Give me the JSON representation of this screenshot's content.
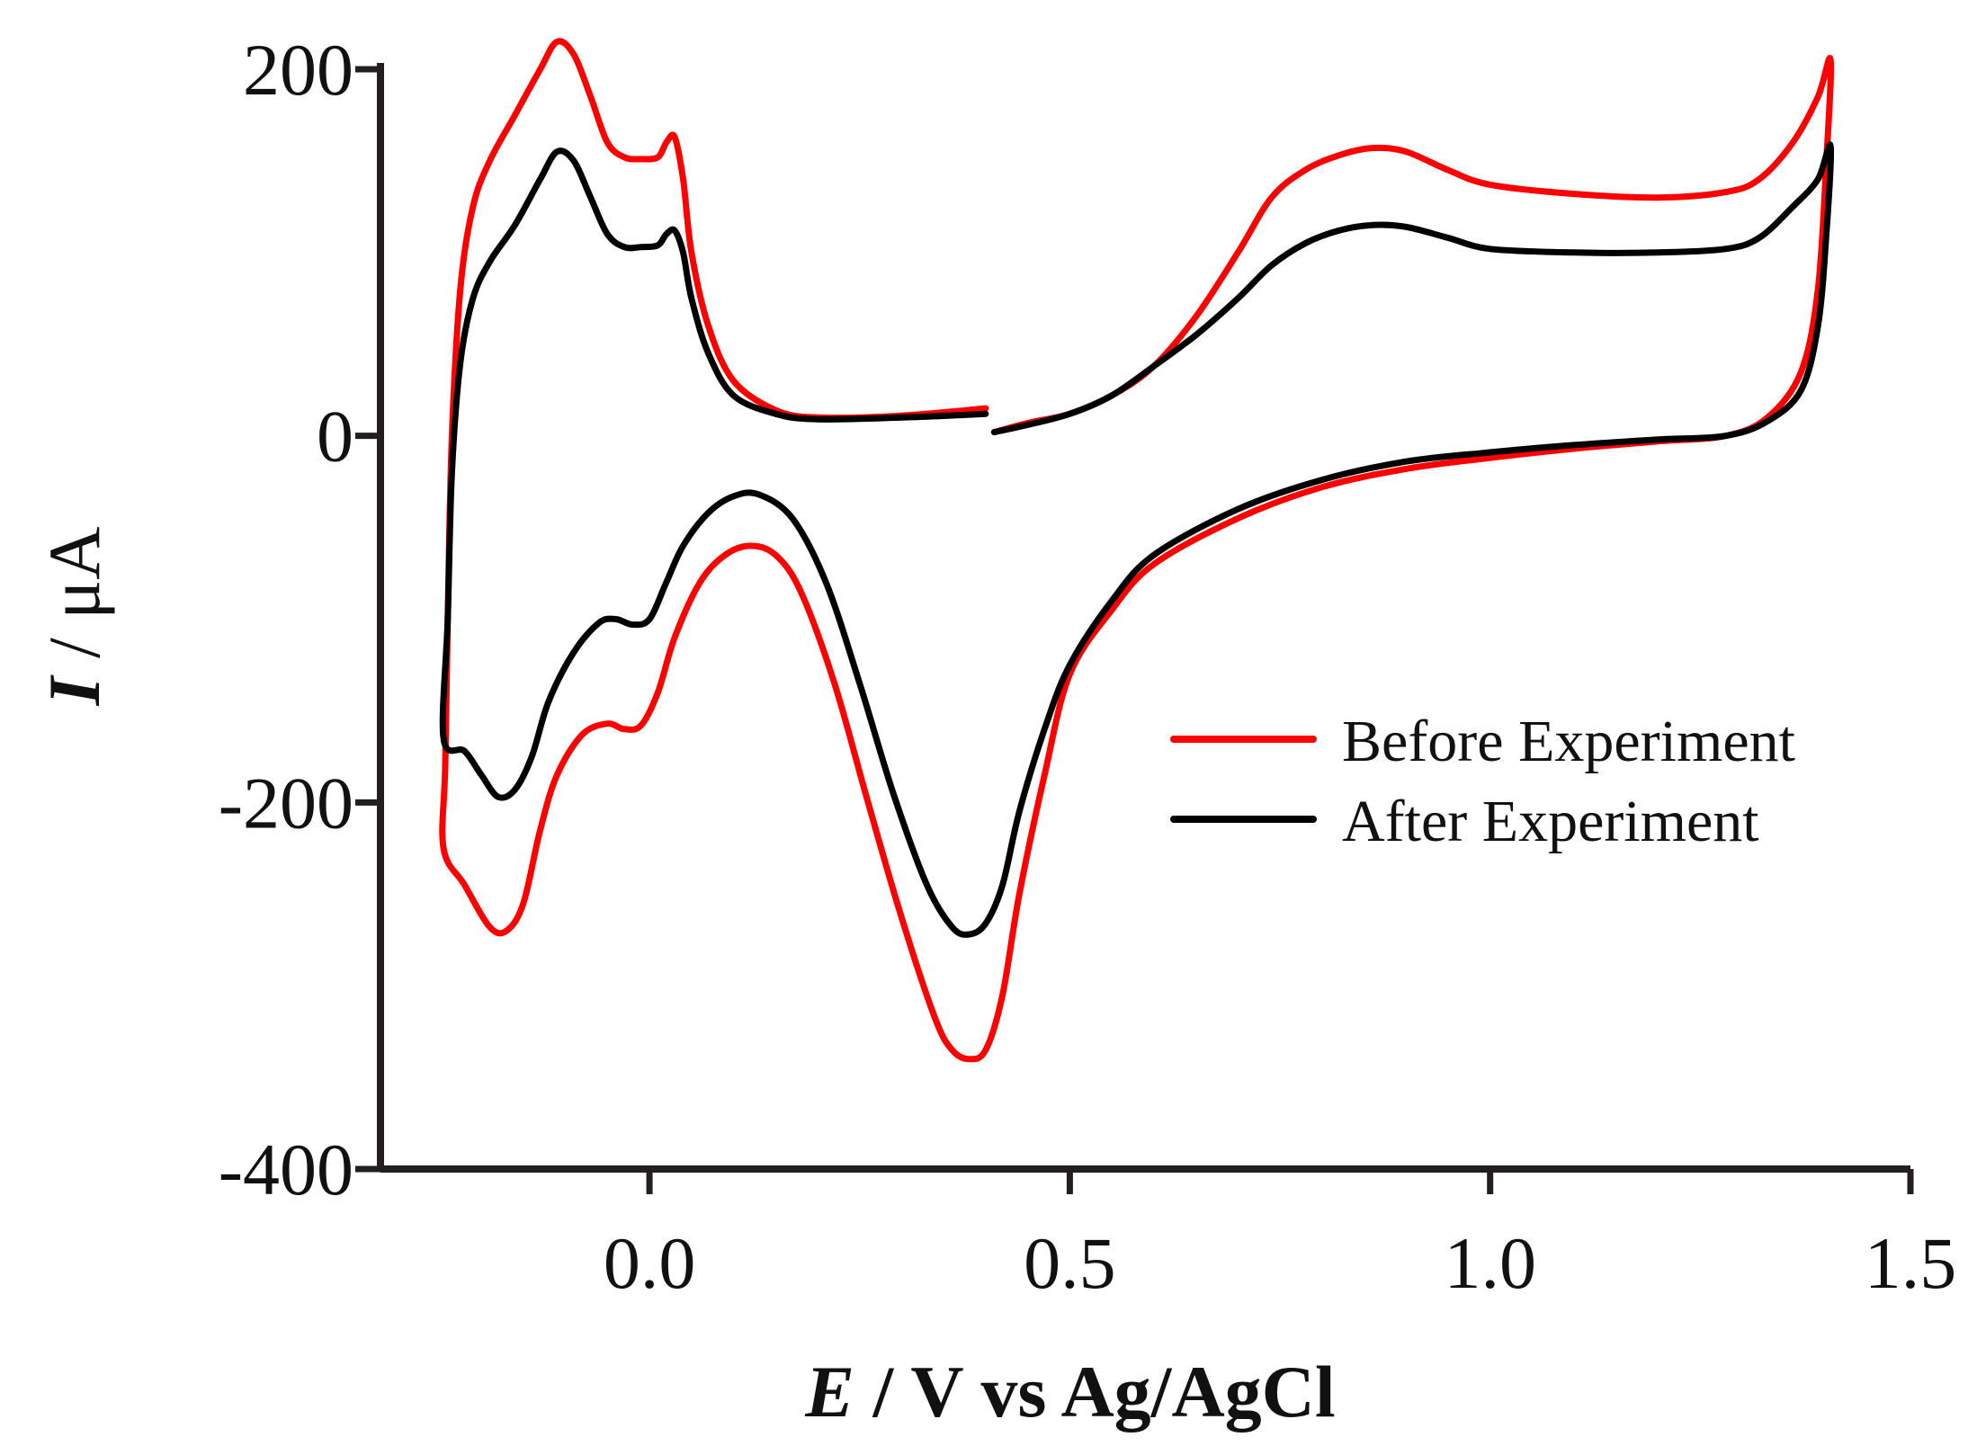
{
  "chart_data": {
    "type": "line",
    "title": "",
    "xlabel_italic": "E",
    "xlabel_rest": " / V vs Ag/AgCl",
    "ylabel_italic": "I",
    "ylabel_rest": " / μA",
    "xlim": [
      -0.32,
      1.5
    ],
    "ylim": [
      -400,
      210
    ],
    "x_ticks": [
      0.0,
      0.5,
      1.0,
      1.5
    ],
    "x_tick_labels": [
      "0.0",
      "0.5",
      "1.0",
      "1.5"
    ],
    "y_ticks": [
      200,
      0,
      -200,
      -400
    ],
    "y_tick_labels": [
      "200",
      "0",
      "-200",
      "-400"
    ],
    "grid": false,
    "legend_position": "right-middle",
    "colors": {
      "axis": "#231f20",
      "before": "#ff0000",
      "after": "#000000"
    },
    "series": [
      {
        "name": "Before Experiment",
        "color": "#ff0000",
        "points": [
          [
            0.4,
            15
          ],
          [
            0.3,
            11
          ],
          [
            0.2,
            10
          ],
          [
            0.15,
            14
          ],
          [
            0.1,
            30
          ],
          [
            0.07,
            60
          ],
          [
            0.05,
            100
          ],
          [
            0.04,
            140
          ],
          [
            0.03,
            163
          ],
          [
            0.02,
            160
          ],
          [
            0.01,
            152
          ],
          [
            -0.01,
            151
          ],
          [
            -0.03,
            152
          ],
          [
            -0.05,
            160
          ],
          [
            -0.07,
            185
          ],
          [
            -0.09,
            208
          ],
          [
            -0.11,
            215
          ],
          [
            -0.13,
            200
          ],
          [
            -0.16,
            175
          ],
          [
            -0.19,
            150
          ],
          [
            -0.21,
            125
          ],
          [
            -0.225,
            80
          ],
          [
            -0.235,
            0
          ],
          [
            -0.24,
            -100
          ],
          [
            -0.243,
            -180
          ],
          [
            -0.245,
            -225
          ],
          [
            -0.22,
            -245
          ],
          [
            -0.19,
            -268
          ],
          [
            -0.17,
            -270
          ],
          [
            -0.15,
            -255
          ],
          [
            -0.13,
            -215
          ],
          [
            -0.11,
            -185
          ],
          [
            -0.08,
            -163
          ],
          [
            -0.05,
            -157
          ],
          [
            -0.03,
            -160
          ],
          [
            -0.01,
            -158
          ],
          [
            0.01,
            -140
          ],
          [
            0.03,
            -110
          ],
          [
            0.06,
            -80
          ],
          [
            0.09,
            -65
          ],
          [
            0.12,
            -60
          ],
          [
            0.15,
            -65
          ],
          [
            0.18,
            -85
          ],
          [
            0.22,
            -135
          ],
          [
            0.26,
            -200
          ],
          [
            0.3,
            -263
          ],
          [
            0.34,
            -318
          ],
          [
            0.36,
            -335
          ],
          [
            0.38,
            -340
          ],
          [
            0.4,
            -335
          ],
          [
            0.42,
            -305
          ],
          [
            0.44,
            -250
          ],
          [
            0.47,
            -185
          ],
          [
            0.5,
            -130
          ],
          [
            0.55,
            -95
          ],
          [
            0.6,
            -70
          ],
          [
            0.7,
            -45
          ],
          [
            0.8,
            -28
          ],
          [
            0.9,
            -18
          ],
          [
            1.0,
            -12
          ],
          [
            1.1,
            -7
          ],
          [
            1.2,
            -3
          ],
          [
            1.28,
            0
          ],
          [
            1.33,
            10
          ],
          [
            1.37,
            35
          ],
          [
            1.39,
            80
          ],
          [
            1.4,
            150
          ],
          [
            1.405,
            205
          ],
          [
            1.39,
            185
          ],
          [
            1.36,
            160
          ],
          [
            1.32,
            140
          ],
          [
            1.28,
            133
          ],
          [
            1.2,
            130
          ],
          [
            1.1,
            132
          ],
          [
            1.0,
            137
          ],
          [
            0.95,
            145
          ],
          [
            0.9,
            155
          ],
          [
            0.86,
            157
          ],
          [
            0.82,
            153
          ],
          [
            0.78,
            145
          ],
          [
            0.74,
            130
          ],
          [
            0.7,
            100
          ],
          [
            0.65,
            65
          ],
          [
            0.6,
            38
          ],
          [
            0.55,
            22
          ],
          [
            0.5,
            12
          ],
          [
            0.45,
            7
          ],
          [
            0.41,
            2
          ]
        ]
      },
      {
        "name": "After Experiment",
        "color": "#000000",
        "points": [
          [
            0.4,
            12
          ],
          [
            0.3,
            10
          ],
          [
            0.2,
            9
          ],
          [
            0.15,
            12
          ],
          [
            0.1,
            22
          ],
          [
            0.07,
            45
          ],
          [
            0.05,
            75
          ],
          [
            0.04,
            100
          ],
          [
            0.03,
            112
          ],
          [
            0.02,
            110
          ],
          [
            0.01,
            104
          ],
          [
            -0.01,
            103
          ],
          [
            -0.03,
            103
          ],
          [
            -0.05,
            110
          ],
          [
            -0.07,
            130
          ],
          [
            -0.09,
            150
          ],
          [
            -0.11,
            155
          ],
          [
            -0.13,
            140
          ],
          [
            -0.16,
            115
          ],
          [
            -0.19,
            95
          ],
          [
            -0.21,
            75
          ],
          [
            -0.225,
            40
          ],
          [
            -0.235,
            -20
          ],
          [
            -0.24,
            -100
          ],
          [
            -0.245,
            -165
          ],
          [
            -0.22,
            -172
          ],
          [
            -0.2,
            -185
          ],
          [
            -0.18,
            -197
          ],
          [
            -0.16,
            -193
          ],
          [
            -0.14,
            -175
          ],
          [
            -0.12,
            -145
          ],
          [
            -0.09,
            -118
          ],
          [
            -0.06,
            -102
          ],
          [
            -0.04,
            -100
          ],
          [
            -0.02,
            -103
          ],
          [
            0.0,
            -100
          ],
          [
            0.02,
            -80
          ],
          [
            0.04,
            -60
          ],
          [
            0.07,
            -42
          ],
          [
            0.1,
            -33
          ],
          [
            0.13,
            -32
          ],
          [
            0.17,
            -45
          ],
          [
            0.21,
            -80
          ],
          [
            0.25,
            -135
          ],
          [
            0.29,
            -195
          ],
          [
            0.33,
            -245
          ],
          [
            0.36,
            -268
          ],
          [
            0.38,
            -272
          ],
          [
            0.4,
            -266
          ],
          [
            0.42,
            -245
          ],
          [
            0.44,
            -205
          ],
          [
            0.47,
            -160
          ],
          [
            0.5,
            -125
          ],
          [
            0.55,
            -90
          ],
          [
            0.6,
            -65
          ],
          [
            0.7,
            -40
          ],
          [
            0.8,
            -24
          ],
          [
            0.9,
            -14
          ],
          [
            1.0,
            -9
          ],
          [
            1.1,
            -5
          ],
          [
            1.2,
            -2
          ],
          [
            1.28,
            0
          ],
          [
            1.33,
            8
          ],
          [
            1.37,
            25
          ],
          [
            1.39,
            60
          ],
          [
            1.4,
            110
          ],
          [
            1.405,
            158
          ],
          [
            1.39,
            140
          ],
          [
            1.36,
            125
          ],
          [
            1.32,
            108
          ],
          [
            1.28,
            102
          ],
          [
            1.2,
            100
          ],
          [
            1.1,
            100
          ],
          [
            1.0,
            102
          ],
          [
            0.95,
            108
          ],
          [
            0.9,
            114
          ],
          [
            0.86,
            115
          ],
          [
            0.82,
            112
          ],
          [
            0.78,
            105
          ],
          [
            0.74,
            93
          ],
          [
            0.7,
            75
          ],
          [
            0.65,
            55
          ],
          [
            0.6,
            38
          ],
          [
            0.55,
            22
          ],
          [
            0.5,
            12
          ],
          [
            0.45,
            6
          ],
          [
            0.41,
            2
          ]
        ]
      }
    ]
  }
}
